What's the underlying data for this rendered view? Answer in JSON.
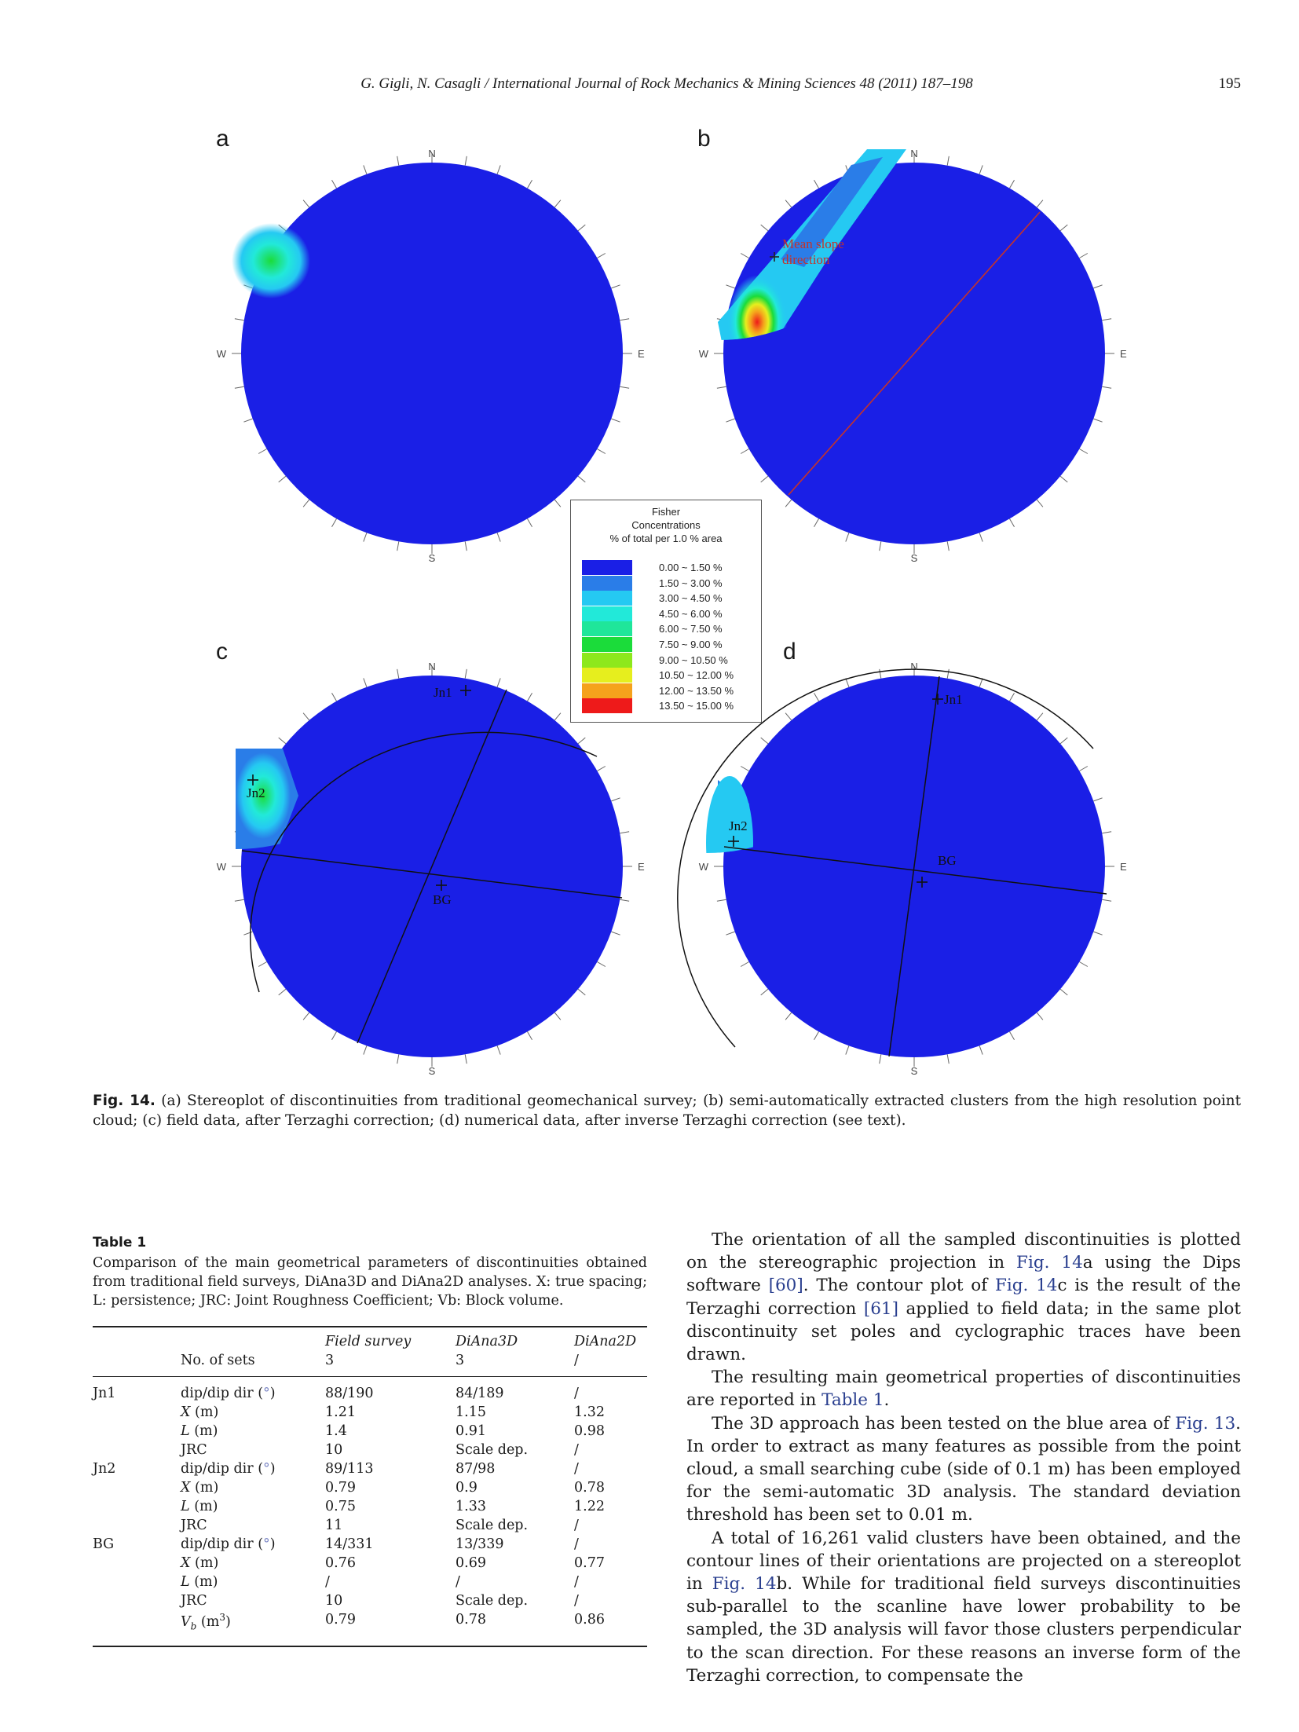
{
  "header": {
    "running_title": "G. Gigli, N. Casagli / International Journal of Rock Mechanics & Mining Sciences 48 (2011) 187–198",
    "page_number": "195"
  },
  "figure": {
    "panels": [
      {
        "letter": "a",
        "compass": {
          "n": "N",
          "e": "E",
          "s": "S",
          "w": "W"
        },
        "labels": []
      },
      {
        "letter": "b",
        "compass": {
          "n": "N",
          "e": "E",
          "s": "S",
          "w": "W"
        },
        "labels": [
          "Mean slope",
          "direction"
        ]
      },
      {
        "letter": "c",
        "compass": {
          "n": "N",
          "e": "E",
          "s": "S",
          "w": "W"
        },
        "labels": [
          "Jn1",
          "Jn2",
          "BG"
        ]
      },
      {
        "letter": "d",
        "compass": {
          "n": "N",
          "e": "E",
          "s": "S",
          "w": "W"
        },
        "labels": [
          "Jn1",
          "Jn2",
          "BG"
        ]
      }
    ],
    "legend": {
      "title_lines": [
        "Fisher",
        "Concentrations",
        "% of total per 1.0 % area"
      ],
      "bins": [
        {
          "label": "0.00 ~  1.50 %",
          "color": "#1a1fe6"
        },
        {
          "label": "1.50 ~  3.00 %",
          "color": "#2a7de8"
        },
        {
          "label": "3.00 ~  4.50 %",
          "color": "#25c9f2"
        },
        {
          "label": "4.50 ~  6.00 %",
          "color": "#22e9d9"
        },
        {
          "label": "6.00 ~  7.50 %",
          "color": "#1fe69a"
        },
        {
          "label": "7.50 ~  9.00 %",
          "color": "#1bdc3a"
        },
        {
          "label": "9.00 ~ 10.50 %",
          "color": "#8de81c"
        },
        {
          "label": "10.50 ~ 12.00 %",
          "color": "#e6ee1e"
        },
        {
          "label": "12.00 ~ 13.50 %",
          "color": "#f5a21c"
        },
        {
          "label": "13.50 ~ 15.00 %",
          "color": "#ee1a1a"
        }
      ]
    },
    "caption": {
      "label": "Fig. 14.",
      "text": "(a) Stereoplot of discontinuities from traditional geomechanical survey; (b) semi-automatically extracted clusters from the high resolution point cloud; (c) field data, after Terzaghi correction; (d) numerical data, after inverse Terzaghi correction (see text)."
    }
  },
  "table": {
    "title": "Table 1",
    "caption": "Comparison of the main geometrical parameters of discontinuities obtained from traditional field surveys, DiAna3D and DiAna2D analyses. X: true spacing; L: persistence; JRC: Joint Roughness Coefficient; Vb: Block volume.",
    "header": {
      "col1_label": "No. of sets",
      "columns": [
        "Field survey",
        "DiAna3D",
        "DiAna2D"
      ],
      "values": [
        "3",
        "3",
        "/"
      ]
    },
    "rows": [
      {
        "group": "Jn1",
        "param": "dip/dip dir (°)",
        "values": [
          "88/190",
          "84/189",
          "/"
        ]
      },
      {
        "group": "",
        "param": "X (m)",
        "values": [
          "1.21",
          "1.15",
          "1.32"
        ]
      },
      {
        "group": "",
        "param": "L (m)",
        "values": [
          "1.4",
          "0.91",
          "0.98"
        ]
      },
      {
        "group": "",
        "param": "JRC",
        "values": [
          "10",
          "Scale dep.",
          "/"
        ]
      },
      {
        "group": "Jn2",
        "param": "dip/dip dir (°)",
        "values": [
          "89/113",
          "87/98",
          "/"
        ]
      },
      {
        "group": "",
        "param": "X (m)",
        "values": [
          "0.79",
          "0.9",
          "0.78"
        ]
      },
      {
        "group": "",
        "param": "L (m)",
        "values": [
          "0.75",
          "1.33",
          "1.22"
        ]
      },
      {
        "group": "",
        "param": "JRC",
        "values": [
          "11",
          "Scale dep.",
          "/"
        ]
      },
      {
        "group": "BG",
        "param": "dip/dip dir (°)",
        "values": [
          "14/331",
          "13/339",
          "/"
        ]
      },
      {
        "group": "",
        "param": "X (m)",
        "values": [
          "0.76",
          "0.69",
          "0.77"
        ]
      },
      {
        "group": "",
        "param": "L (m)",
        "values": [
          "/",
          "/",
          "/"
        ]
      },
      {
        "group": "",
        "param": "JRC",
        "values": [
          "10",
          "Scale dep.",
          "/"
        ]
      },
      {
        "group": "",
        "param": "Vb (m3)",
        "values": [
          "0.79",
          "0.78",
          "0.86"
        ]
      }
    ]
  },
  "body": {
    "p1": [
      "The orientation of all the sampled discontinuities is plotted on the stereographic projection in ",
      "Fig. 14",
      "a using the Dips software ",
      "[60]",
      ". The contour plot of ",
      "Fig. 14",
      "c is the result of the Terzaghi correction ",
      "[61]",
      " applied to field data; in the same plot discontinuity set poles and cyclographic traces have been drawn."
    ],
    "p2": [
      "The resulting main geometrical properties of discontinuities are reported in ",
      "Table 1",
      "."
    ],
    "p3": [
      "The 3D approach has been tested on the blue area of ",
      "Fig. 13",
      ". In order to extract as many features as possible from the point cloud, a small searching cube (side of 0.1 m) has been employed for the semi-automatic 3D analysis. The standard deviation threshold has been set to 0.01 m."
    ],
    "p4": [
      "A total of 16,261 valid clusters have been obtained, and the contour lines of their orientations are projected on a stereoplot in ",
      "Fig. 14",
      "b. While for traditional field surveys discontinuities sub-parallel to the scanline have lower probability to be sampled, the 3D analysis will favor those clusters perpendicular to the scan direction. For these reasons an inverse form of the Terzaghi correction, to compensate the"
    ]
  }
}
